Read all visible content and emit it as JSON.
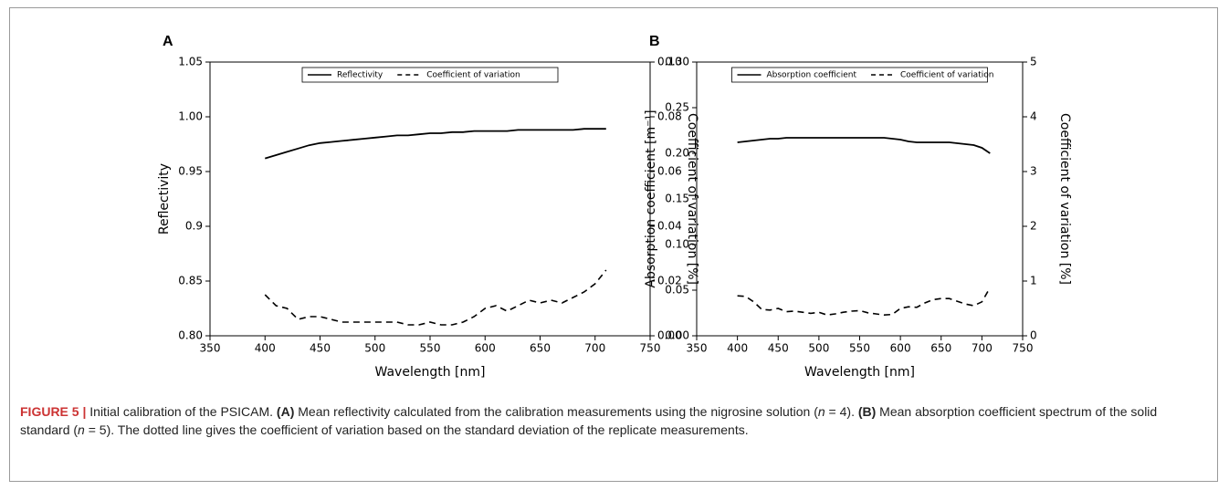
{
  "chart_data": [
    {
      "type": "line",
      "title": "A",
      "xlabel": "Wavelength [nm]",
      "ylabel": "Reflectivity",
      "y2label": "Coefficient of variation [%]",
      "x": [
        400,
        410,
        420,
        430,
        440,
        450,
        460,
        470,
        480,
        490,
        500,
        510,
        520,
        530,
        540,
        550,
        560,
        570,
        580,
        590,
        600,
        610,
        620,
        630,
        640,
        650,
        660,
        670,
        680,
        690,
        700,
        710
      ],
      "series": [
        {
          "name": "Reflectivity",
          "color": "#000000",
          "dash": false,
          "values": [
            0.962,
            0.965,
            0.968,
            0.971,
            0.974,
            0.976,
            0.977,
            0.978,
            0.979,
            0.98,
            0.981,
            0.982,
            0.983,
            0.983,
            0.984,
            0.985,
            0.985,
            0.986,
            0.986,
            0.987,
            0.987,
            0.987,
            0.987,
            0.988,
            0.988,
            0.988,
            0.988,
            0.988,
            0.988,
            0.989,
            0.989,
            0.989
          ]
        },
        {
          "name": "Coefficient of variation",
          "color": "#000000",
          "dash": true,
          "axis": "y2",
          "values": [
            0.015,
            0.011,
            0.01,
            0.006,
            0.007,
            0.007,
            0.006,
            0.005,
            0.005,
            0.005,
            0.005,
            0.005,
            0.005,
            0.004,
            0.004,
            0.005,
            0.004,
            0.004,
            0.005,
            0.007,
            0.01,
            0.011,
            0.009,
            0.011,
            0.013,
            0.012,
            0.013,
            0.012,
            0.014,
            0.016,
            0.019,
            0.024
          ]
        }
      ],
      "xlim": [
        350,
        750
      ],
      "xticks": [
        350,
        400,
        450,
        500,
        550,
        600,
        650,
        700,
        750
      ],
      "ylim": [
        0.8,
        1.05
      ],
      "yticks": [
        {
          "value": 0.8,
          "label": "0.80"
        },
        0.85,
        0.9,
        0.95,
        {
          "value": 1.0,
          "label": "1.00"
        },
        1.05
      ],
      "y2lim": [
        0,
        0.1
      ],
      "y2ticks": [
        {
          "value": 0,
          "label": "0.00"
        },
        0.02,
        0.04,
        0.06,
        0.08,
        {
          "value": 0.1,
          "label": "0.10"
        }
      ],
      "legend": "upper center"
    },
    {
      "type": "line",
      "title": "B",
      "xlabel": "Wavelength [nm]",
      "ylabel": "Absorption coefficient  [m⁻¹]",
      "y2label": "Coefficient of variation [%]",
      "x": [
        400,
        410,
        420,
        430,
        440,
        450,
        460,
        470,
        480,
        490,
        500,
        510,
        520,
        530,
        540,
        550,
        560,
        570,
        580,
        590,
        600,
        610,
        620,
        630,
        640,
        650,
        660,
        670,
        680,
        690,
        700,
        710
      ],
      "series": [
        {
          "name": "Absorption coefficient",
          "color": "#000000",
          "dash": false,
          "values": [
            0.212,
            0.213,
            0.214,
            0.215,
            0.216,
            0.216,
            0.217,
            0.217,
            0.217,
            0.217,
            0.217,
            0.217,
            0.217,
            0.217,
            0.217,
            0.217,
            0.217,
            0.217,
            0.217,
            0.216,
            0.215,
            0.213,
            0.212,
            0.212,
            0.212,
            0.212,
            0.212,
            0.211,
            0.21,
            0.209,
            0.206,
            0.2
          ]
        },
        {
          "name": "Coefficient of variation",
          "color": "#000000",
          "dash": true,
          "axis": "y2",
          "values": [
            0.73,
            0.72,
            0.62,
            0.48,
            0.47,
            0.5,
            0.44,
            0.45,
            0.43,
            0.41,
            0.43,
            0.38,
            0.4,
            0.43,
            0.45,
            0.46,
            0.42,
            0.4,
            0.38,
            0.39,
            0.5,
            0.53,
            0.52,
            0.6,
            0.66,
            0.68,
            0.68,
            0.63,
            0.58,
            0.55,
            0.62,
            0.88
          ]
        }
      ],
      "xlim": [
        350,
        750
      ],
      "xticks": [
        350,
        400,
        450,
        500,
        550,
        600,
        650,
        700,
        750
      ],
      "ylim": [
        0,
        0.3
      ],
      "yticks": [
        {
          "value": 0,
          "label": "0.00"
        },
        0.05,
        {
          "value": 0.1,
          "label": "0.10"
        },
        0.15,
        {
          "value": 0.2,
          "label": "0.20"
        },
        0.25,
        {
          "value": 0.3,
          "label": "0.30"
        }
      ],
      "y2lim": [
        0,
        5
      ],
      "y2ticks": [
        0,
        1,
        2,
        3,
        4,
        5
      ],
      "legend": "upper center"
    }
  ],
  "caption": [
    "FIGURE 5 |",
    " Initial calibration of the PSICAM. ",
    "(A)",
    " Mean reflectivity calculated from the calibration measurements using the nigrosine solution (",
    "n",
    " = 4). ",
    "(B)",
    " Mean absorption coefficient spectrum of the solid standard (",
    "n",
    " = 5). The dotted line gives the coefficient of variation based on the standard deviation of the replicate measurements."
  ]
}
